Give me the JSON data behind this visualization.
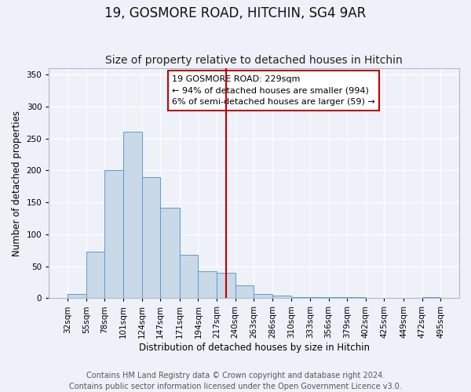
{
  "title": "19, GOSMORE ROAD, HITCHIN, SG4 9AR",
  "subtitle": "Size of property relative to detached houses in Hitchin",
  "xlabel": "Distribution of detached houses by size in Hitchin",
  "ylabel": "Number of detached properties",
  "bin_labels": [
    "32sqm",
    "55sqm",
    "78sqm",
    "101sqm",
    "124sqm",
    "147sqm",
    "171sqm",
    "194sqm",
    "217sqm",
    "240sqm",
    "263sqm",
    "286sqm",
    "310sqm",
    "333sqm",
    "356sqm",
    "379sqm",
    "402sqm",
    "425sqm",
    "449sqm",
    "472sqm",
    "495sqm"
  ],
  "bin_edges": [
    32,
    55,
    78,
    101,
    124,
    147,
    171,
    194,
    217,
    240,
    263,
    286,
    310,
    333,
    356,
    379,
    402,
    425,
    449,
    472,
    495
  ],
  "bar_heights": [
    6,
    73,
    200,
    261,
    190,
    142,
    68,
    42,
    40,
    20,
    6,
    4,
    2,
    1,
    2,
    1,
    0,
    0,
    0,
    2
  ],
  "bar_color": "#c9d9e8",
  "bar_edgecolor": "#5b9bd5",
  "vline_x": 229,
  "vline_color": "#c00000",
  "annotation_box_text": "19 GOSMORE ROAD: 229sqm\n← 94% of detached houses are smaller (994)\n6% of semi-detached houses are larger (59) →",
  "box_edgecolor": "#c00000",
  "ylim": [
    0,
    360
  ],
  "yticks": [
    0,
    50,
    100,
    150,
    200,
    250,
    300,
    350
  ],
  "footer1": "Contains HM Land Registry data © Crown copyright and database right 2024.",
  "footer2": "Contains public sector information licensed under the Open Government Licence v3.0.",
  "bg_color": "#eef2f8",
  "title_fontsize": 12,
  "subtitle_fontsize": 10,
  "label_fontsize": 8.5,
  "tick_fontsize": 7.5,
  "footer_fontsize": 7
}
